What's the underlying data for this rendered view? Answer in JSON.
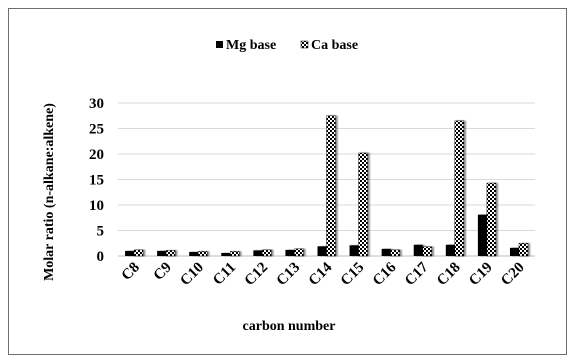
{
  "chart_data": {
    "type": "bar",
    "title": "",
    "categories": [
      "C8",
      "C9",
      "C10",
      "C11",
      "C12",
      "C13",
      "C14",
      "C15",
      "C16",
      "C17",
      "C18",
      "C19",
      "C20"
    ],
    "series": [
      {
        "name": "Mg base",
        "values": [
          1.0,
          1.0,
          0.8,
          0.6,
          1.1,
          1.2,
          1.9,
          2.1,
          1.4,
          2.2,
          2.2,
          8.1,
          1.6
        ],
        "color": "#000000",
        "pattern": "solid"
      },
      {
        "name": "Ca base",
        "values": [
          1.2,
          1.1,
          0.9,
          0.9,
          1.2,
          1.4,
          27.5,
          20.2,
          1.2,
          1.8,
          26.5,
          14.3,
          2.5
        ],
        "color": "#000000",
        "pattern": "checkered"
      }
    ],
    "xlabel": "carbon number",
    "ylabel": "Molar ratio (n-alkane:alkene)",
    "ylim": [
      0,
      30
    ],
    "yticks": [
      "0",
      "5",
      "10",
      "15",
      "20",
      "25",
      "30"
    ],
    "grid": true,
    "legend_position": "top"
  }
}
